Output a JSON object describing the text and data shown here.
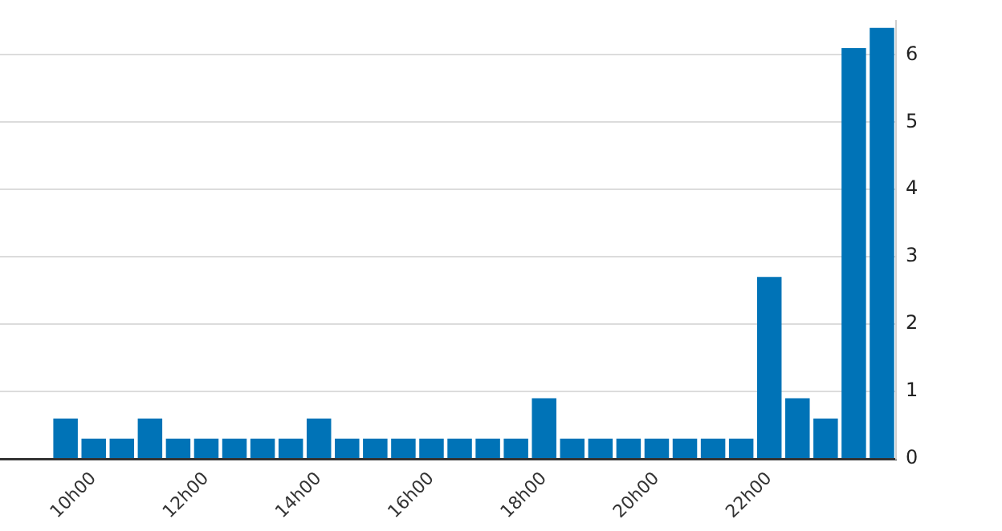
{
  "chart_data": {
    "type": "bar",
    "categories": [
      null,
      null,
      null,
      "10h00",
      null,
      null,
      null,
      "12h00",
      null,
      null,
      null,
      "14h00",
      null,
      null,
      null,
      "16h00",
      null,
      null,
      null,
      "18h00",
      null,
      null,
      null,
      "20h00",
      null,
      null,
      null,
      "22h00",
      null,
      null,
      null,
      null
    ],
    "values": [
      0,
      0,
      0.6,
      0.3,
      0.3,
      0.6,
      0.3,
      0.3,
      0.3,
      0.3,
      0.3,
      0.6,
      0.3,
      0.3,
      0.3,
      0.3,
      0.3,
      0.3,
      0.3,
      0.9,
      0.3,
      0.3,
      0.3,
      0.3,
      0.3,
      0.3,
      0.3,
      2.7,
      0.9,
      0.6,
      6.1,
      6.4
    ],
    "color": "#0073b7",
    "ylim": [
      0,
      6.5
    ],
    "yticks": [
      0,
      1,
      2,
      3,
      4,
      5,
      6
    ],
    "grid": "y",
    "legend": false
  }
}
